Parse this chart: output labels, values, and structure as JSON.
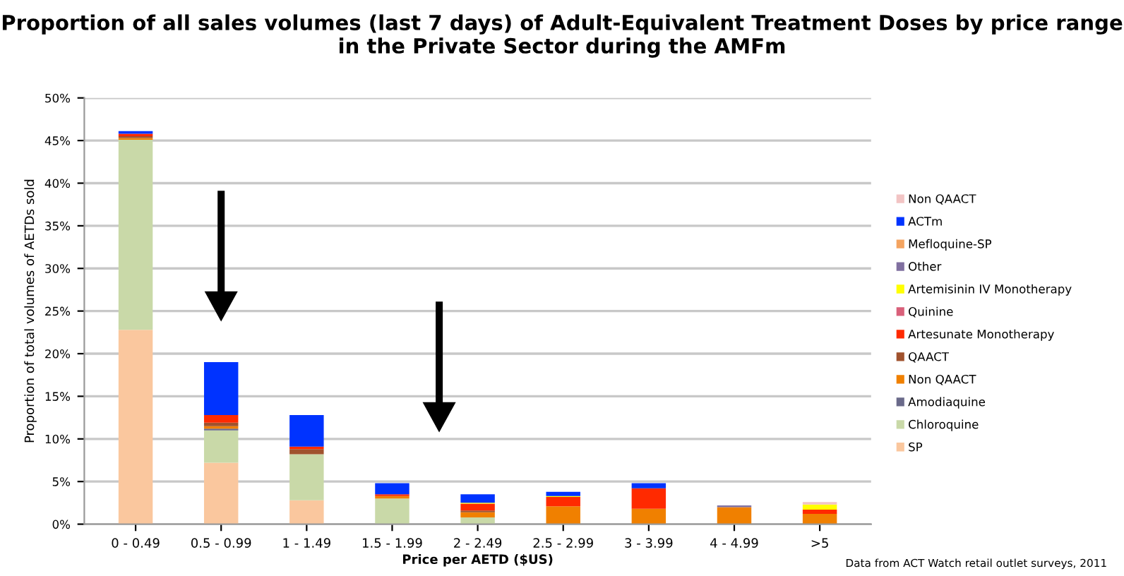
{
  "chart_data": {
    "type": "bar",
    "title": "Proportion of all sales volumes (last 7 days) of Adult-Equivalent Treatment Doses by price range in the Private Sector during the AMFm",
    "xlabel": "Price per AETD ($US)",
    "ylabel": "Proportion of total volumes of AETDs sold",
    "categories": [
      "0 - 0.49",
      "0.5 - 0.99",
      "1 - 1.49",
      "1.5 - 1.99",
      "2 - 2.49",
      "2.5 - 2.99",
      "3 - 3.99",
      "4 - 4.99",
      ">5"
    ],
    "stacked": true,
    "grid": "y",
    "legend": "right",
    "ylim": [
      0,
      50
    ],
    "yticks": [
      {
        "value": 0,
        "label": "0%"
      },
      {
        "value": 5,
        "label": "5%"
      },
      {
        "value": 10,
        "label": "10%"
      },
      {
        "value": 15,
        "label": "15%"
      },
      {
        "value": 20,
        "label": "20%"
      },
      {
        "value": 25,
        "label": "25%"
      },
      {
        "value": 30,
        "label": "30%"
      },
      {
        "value": 35,
        "label": "35%"
      },
      {
        "value": 40,
        "label": "40%"
      },
      {
        "value": 45,
        "label": "45%"
      },
      {
        "value": 50,
        "label": "50%"
      }
    ],
    "series": [
      {
        "name": "SP",
        "color": "#fac79e",
        "values": [
          22.8,
          7.2,
          2.8,
          0,
          0,
          0,
          0,
          0,
          0
        ]
      },
      {
        "name": "Chloroquine",
        "color": "#c9d9a8",
        "values": [
          22.3,
          3.8,
          5.4,
          3.0,
          0.8,
          0,
          0,
          0,
          0
        ]
      },
      {
        "name": "Amodiaquine",
        "color": "#6a6a8a",
        "values": [
          0,
          0.2,
          0,
          0,
          0,
          0,
          0,
          0,
          0
        ]
      },
      {
        "name": "Non QAACT",
        "color": "#f08000",
        "values": [
          0.2,
          0.3,
          0,
          0.3,
          0.6,
          2.1,
          1.8,
          2.0,
          1.2
        ]
      },
      {
        "name": "QAACT",
        "color": "#a0522d",
        "values": [
          0.2,
          0.4,
          0.6,
          0,
          0.2,
          0,
          0,
          0,
          0
        ]
      },
      {
        "name": "Artesunate Monotherapy",
        "color": "#ff2a00",
        "values": [
          0.3,
          0.9,
          0.3,
          0.2,
          0.8,
          1.1,
          2.4,
          0,
          0.5
        ]
      },
      {
        "name": "Quinine",
        "color": "#d9607a",
        "values": [
          0,
          0,
          0,
          0,
          0,
          0,
          0,
          0,
          0
        ]
      },
      {
        "name": "Artemisinin IV Monotherapy",
        "color": "#ffff00",
        "values": [
          0,
          0,
          0,
          0,
          0.1,
          0.1,
          0,
          0,
          0.6
        ]
      },
      {
        "name": "Other",
        "color": "#8070a0",
        "values": [
          0,
          0,
          0,
          0,
          0,
          0,
          0,
          0.2,
          0
        ]
      },
      {
        "color": "#4bacc6",
        "values": [
          0,
          0,
          0,
          0,
          0,
          0,
          0,
          0,
          0
        ]
      },
      {
        "name": "Mefloquine-SP",
        "color": "#f4a460",
        "values": [
          0,
          0,
          0,
          0,
          0,
          0,
          0,
          0,
          0
        ]
      },
      {
        "name": "ACTm",
        "color": "#0033ff",
        "values": [
          0.3,
          6.2,
          3.7,
          1.3,
          1.0,
          0.5,
          0.6,
          0,
          0
        ]
      },
      {
        "name": "Non QAACT",
        "color": "#f2c4c4",
        "values": [
          0,
          0,
          0,
          0,
          0,
          0,
          0,
          0,
          0.3
        ]
      }
    ],
    "annotations": [
      "Data from ACT Watch retail outlet surveys, 2011"
    ]
  }
}
